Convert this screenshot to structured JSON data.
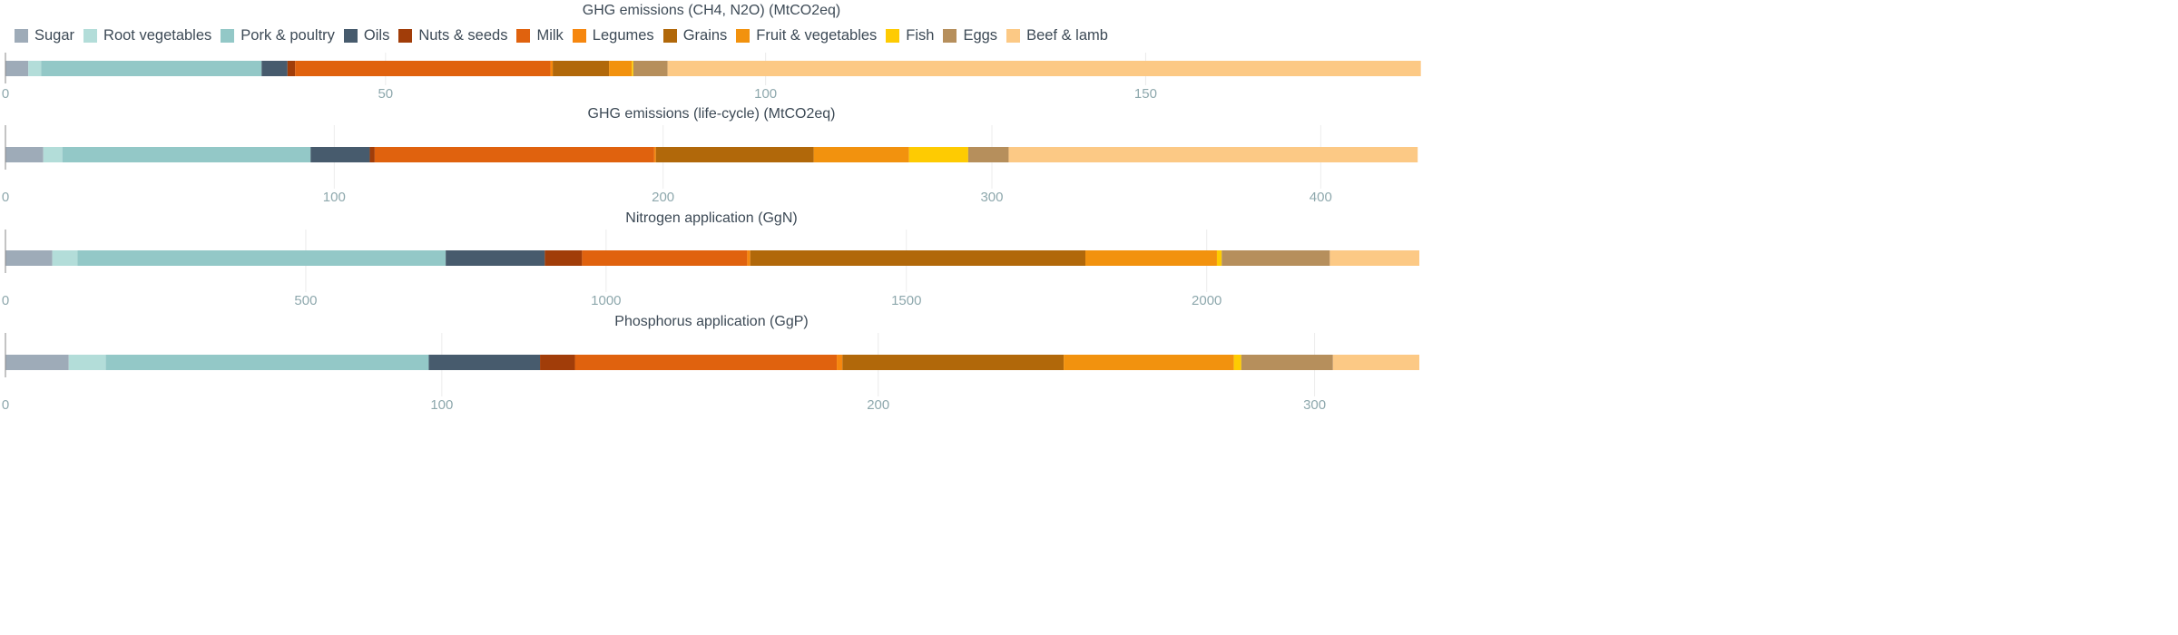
{
  "chart_data": {
    "type": "bar",
    "stacked": true,
    "orientation": "horizontal",
    "grid": true,
    "legend_position": "top",
    "categories": [
      "Sugar",
      "Root vegetables",
      "Pork & poultry",
      "Oils",
      "Nuts & seeds",
      "Milk",
      "Legumes",
      "Grains",
      "Fruit & vegetables",
      "Fish",
      "Eggs",
      "Beef & lamb"
    ],
    "colors": [
      "#9eabb8",
      "#b3ddd9",
      "#93c8c7",
      "#475b6d",
      "#a13d09",
      "#e0620e",
      "#f6870f",
      "#b1680a",
      "#f2920e",
      "#fecb02",
      "#b68f5c",
      "#fcc985"
    ],
    "panels": [
      {
        "title": "GHG emissions (CH4, N2O) (MtCO2eq)",
        "xlim": [
          0,
          186
        ],
        "ticks": [
          "0",
          "50",
          "100",
          "150"
        ],
        "tick_values": [
          0,
          50,
          100,
          150
        ],
        "values": [
          3,
          1.7,
          29,
          3.4,
          1,
          33.6,
          0.3,
          7.4,
          3,
          0.2,
          4.5,
          99.1
        ]
      },
      {
        "title": "GHG emissions (life-cycle) (MtCO2eq)",
        "xlim": [
          0,
          430
        ],
        "ticks": [
          "0",
          "100",
          "200",
          "300",
          "400"
        ],
        "tick_values": [
          0,
          100,
          200,
          300,
          400
        ],
        "values": [
          11.5,
          5.8,
          75.5,
          18,
          1.5,
          85,
          0.5,
          48,
          29,
          18,
          12.3,
          124.4
        ]
      },
      {
        "title": "Nitrogen application (GgN)",
        "xlim": [
          0,
          2354
        ],
        "ticks": [
          "0",
          "500",
          "1000",
          "1500",
          "2000"
        ],
        "tick_values": [
          0,
          500,
          1000,
          1500,
          2000
        ],
        "values": [
          78,
          42,
          613,
          165,
          62,
          275,
          5,
          558,
          219,
          8,
          180,
          149
        ]
      },
      {
        "title": "Phosphorus application (GgP)",
        "xlim": [
          0,
          324
        ],
        "ticks": [
          "0",
          "100",
          "200",
          "300"
        ],
        "tick_values": [
          0,
          100,
          200,
          300
        ],
        "values": [
          14.5,
          8.5,
          74,
          25.5,
          8,
          60,
          1.3,
          50.7,
          39,
          1.7,
          21,
          19.8
        ]
      }
    ]
  }
}
